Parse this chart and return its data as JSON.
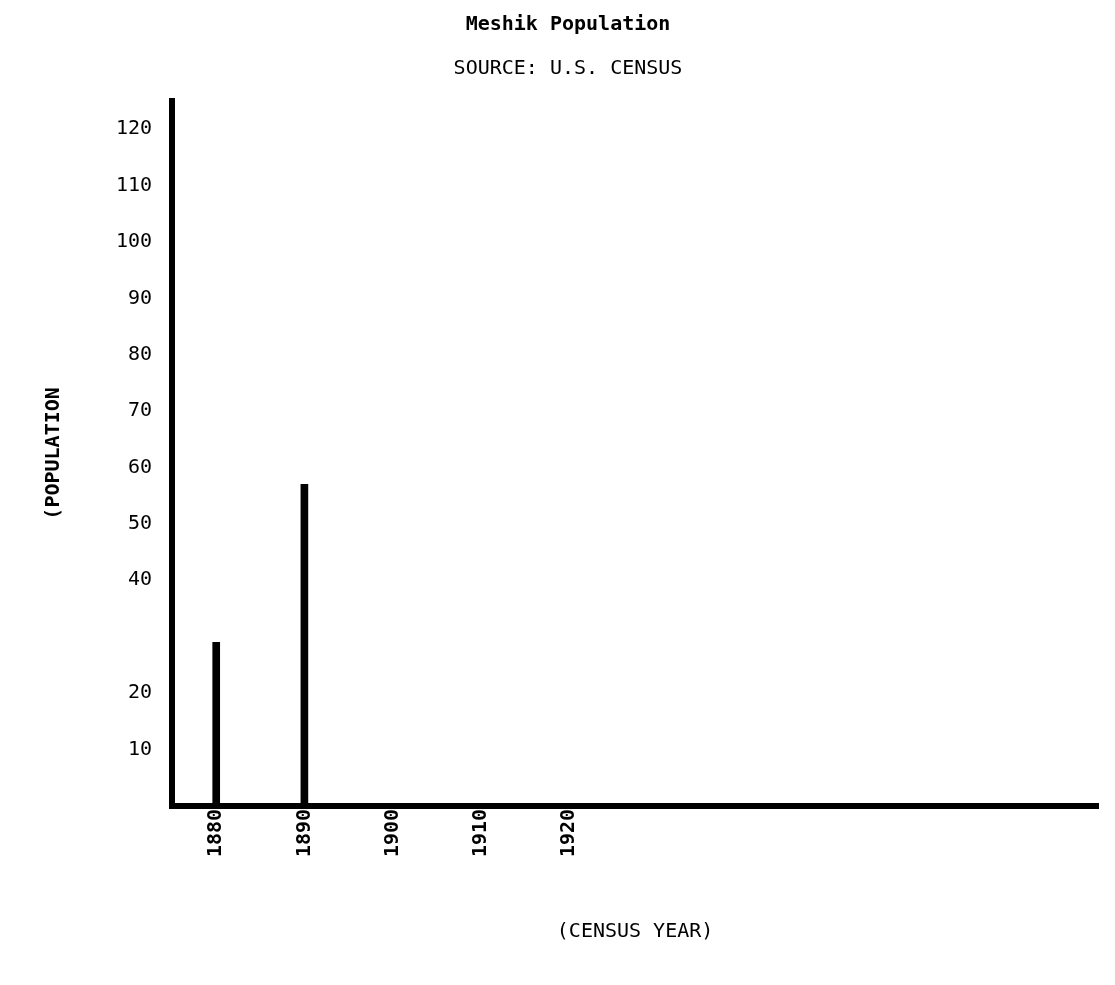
{
  "chart_data": {
    "type": "bar",
    "title": "Meshik Population",
    "annotations": [
      "SOURCE: U.S. CENSUS"
    ],
    "xlabel": "(CENSUS YEAR)",
    "ylabel": "(POPULATION",
    "x": [
      1880,
      1890
    ],
    "values": [
      29,
      57
    ],
    "color": "#000000",
    "xlim": [
      1875,
      1980
    ],
    "xticks": [
      1880,
      1890,
      1900,
      1910,
      1920
    ],
    "ylim": [
      0,
      125
    ],
    "yticks": [
      10,
      20,
      40,
      50,
      60,
      70,
      80,
      90,
      100,
      110,
      120
    ],
    "grid": false,
    "legend": false
  }
}
